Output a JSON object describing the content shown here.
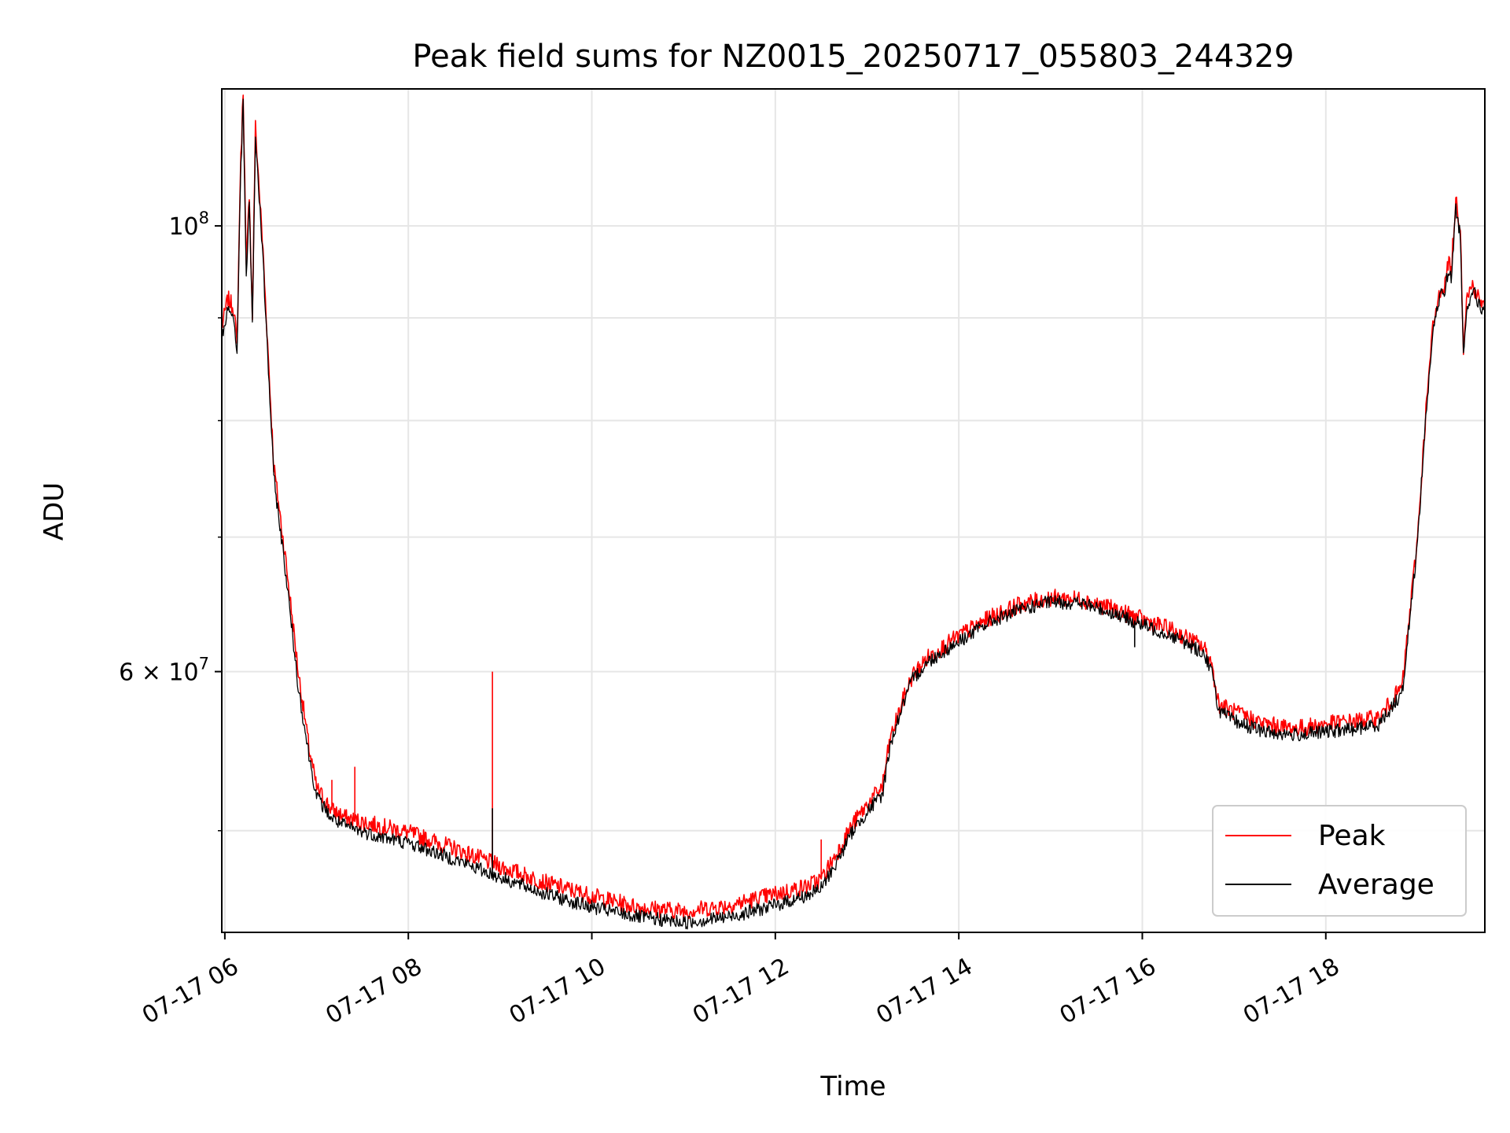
{
  "chart_data": {
    "type": "line",
    "title": "Peak field sums for NZ0015_20250717_055803_244329",
    "xlabel": "Time",
    "ylabel": "ADU",
    "yscale": "log",
    "xlim": [
      "2025-07-17T05:58",
      "2025-07-17T19:44"
    ],
    "ylim": [
      44500000,
      117000000
    ],
    "grid": true,
    "legend_position": "lower-right",
    "x_ticks": [
      "07-17 06",
      "07-17 08",
      "07-17 10",
      "07-17 12",
      "07-17 14",
      "07-17 16",
      "07-17 18"
    ],
    "y_tick_labels": [
      {
        "value": 100000000,
        "mantissa": "10",
        "exp": "8",
        "coef": ""
      },
      {
        "value": 60000000,
        "mantissa": "10",
        "exp": "7",
        "coef": "6 × "
      }
    ],
    "y_minor_ticks": [
      50000000,
      70000000,
      80000000,
      90000000
    ],
    "x": [
      "05:58",
      "06:02",
      "06:06",
      "06:08",
      "06:10",
      "06:12",
      "06:14",
      "06:16",
      "06:18",
      "06:20",
      "06:25",
      "06:32",
      "06:40",
      "06:48",
      "06:55",
      "07:00",
      "07:10",
      "07:20",
      "07:40",
      "08:00",
      "08:30",
      "09:00",
      "09:30",
      "10:00",
      "10:30",
      "11:00",
      "11:30",
      "12:00",
      "12:20",
      "12:30",
      "12:40",
      "12:50",
      "13:00",
      "13:10",
      "13:15",
      "13:20",
      "13:25",
      "13:30",
      "13:40",
      "14:00",
      "14:20",
      "14:40",
      "15:00",
      "15:20",
      "15:40",
      "16:00",
      "16:20",
      "16:40",
      "16:45",
      "16:50",
      "17:00",
      "17:20",
      "17:40",
      "18:00",
      "18:20",
      "18:35",
      "18:50",
      "19:00",
      "19:05",
      "19:10",
      "19:15",
      "19:18",
      "19:20",
      "19:22",
      "19:25",
      "19:28",
      "19:30",
      "19:32",
      "19:36",
      "19:40",
      "19:44"
    ],
    "series": [
      {
        "name": "Peak",
        "color": "#ff0000",
        "values": [
          89000000,
          92000000,
          91000000,
          87000000,
          105000000,
          117000000,
          95000000,
          104000000,
          90000000,
          112000000,
          97000000,
          76000000,
          68000000,
          60000000,
          55000000,
          52500000,
          51200000,
          50700000,
          50300000,
          49900000,
          49000000,
          48000000,
          47100000,
          46400000,
          45800000,
          45600000,
          45900000,
          46500000,
          46900000,
          47300000,
          48700000,
          50300000,
          51500000,
          52600000,
          55500000,
          57000000,
          58500000,
          59800000,
          61000000,
          62500000,
          63800000,
          64800000,
          65300000,
          65200000,
          64500000,
          63700000,
          62900000,
          61700000,
          60700000,
          57800000,
          57300000,
          56500000,
          56200000,
          56500000,
          56700000,
          56900000,
          59000000,
          70000000,
          80000000,
          89000000,
          93000000,
          93500000,
          96000000,
          95000000,
          103000000,
          100000000,
          87000000,
          92000000,
          93500000,
          92000000,
          91000000
        ]
      },
      {
        "name": "Average",
        "color": "#000000",
        "values": [
          88000000,
          91000000,
          90000000,
          86000000,
          104000000,
          115000000,
          94000000,
          103000000,
          89000000,
          111000000,
          96000000,
          75000000,
          67000000,
          59000000,
          54500000,
          52000000,
          50700000,
          50200000,
          49700000,
          49300000,
          48400000,
          47400000,
          46500000,
          45800000,
          45300000,
          45000000,
          45300000,
          45900000,
          46400000,
          46800000,
          48200000,
          49900000,
          51100000,
          52100000,
          55100000,
          56700000,
          58200000,
          59500000,
          60700000,
          62100000,
          63500000,
          64400000,
          65000000,
          64900000,
          64200000,
          63300000,
          62500000,
          61300000,
          60200000,
          57400000,
          56700000,
          56000000,
          55800000,
          56000000,
          56200000,
          56500000,
          58600000,
          69600000,
          79600000,
          88500000,
          92500000,
          93000000,
          95000000,
          94000000,
          102000000,
          99000000,
          86000000,
          91000000,
          93000000,
          91500000,
          90500000
        ]
      }
    ],
    "spikes": [
      {
        "x": "07:10",
        "series": "Peak",
        "value": 53000000
      },
      {
        "x": "07:25",
        "series": "Peak",
        "value": 53800000
      },
      {
        "x": "08:55",
        "series": "Peak",
        "value": 60000000
      },
      {
        "x": "08:55",
        "series": "Average",
        "value": 51300000
      },
      {
        "x": "12:30",
        "series": "Peak",
        "value": 49500000
      },
      {
        "x": "15:55",
        "series": "Average",
        "value": 61700000
      }
    ]
  }
}
